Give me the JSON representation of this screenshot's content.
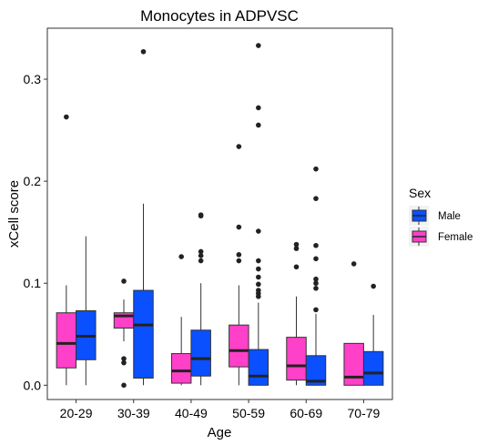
{
  "chart_data": {
    "type": "boxplot",
    "title": "Monocytes in ADPVSC",
    "xlabel": "Age",
    "ylabel": "xCell score",
    "ylim": [
      -0.014,
      0.35
    ],
    "yticks": [
      0.0,
      0.1,
      0.2,
      0.3
    ],
    "ytick_labels": [
      "0.0",
      "0.1",
      "0.2",
      "0.3"
    ],
    "categories": [
      "20-29",
      "30-39",
      "40-49",
      "50-59",
      "60-69",
      "70-79"
    ],
    "legend": {
      "title": "Sex",
      "placement": "right"
    },
    "series": [
      {
        "name": "Female",
        "color": "#FF40C8",
        "boxes": [
          {
            "min": 0.0,
            "q1": 0.017,
            "median": 0.041,
            "q3": 0.071,
            "max": 0.098,
            "outliers": [
              0.263
            ]
          },
          {
            "min": 0.043,
            "q1": 0.056,
            "median": 0.068,
            "q3": 0.071,
            "max": 0.084,
            "outliers": [
              0.102,
              0.026,
              0.022,
              0.0
            ]
          },
          {
            "min": 0.0,
            "q1": 0.002,
            "median": 0.014,
            "q3": 0.031,
            "max": 0.067,
            "outliers": [
              0.126
            ]
          },
          {
            "min": 0.0,
            "q1": 0.018,
            "median": 0.034,
            "q3": 0.059,
            "max": 0.098,
            "outliers": [
              0.234,
              0.155,
              0.128,
              0.122
            ]
          },
          {
            "min": 0.0,
            "q1": 0.005,
            "median": 0.019,
            "q3": 0.047,
            "max": 0.087,
            "outliers": [
              0.138,
              0.134,
              0.116
            ]
          },
          {
            "min": 0.0,
            "q1": 0.0,
            "median": 0.008,
            "q3": 0.041,
            "max": 0.041,
            "outliers": [
              0.119
            ]
          }
        ]
      },
      {
        "name": "Male",
        "color": "#0A50FF",
        "boxes": [
          {
            "min": 0.0,
            "q1": 0.025,
            "median": 0.048,
            "q3": 0.073,
            "max": 0.146,
            "outliers": []
          },
          {
            "min": 0.0,
            "q1": 0.007,
            "median": 0.059,
            "q3": 0.093,
            "max": 0.178,
            "outliers": [
              0.327
            ]
          },
          {
            "min": 0.0,
            "q1": 0.009,
            "median": 0.026,
            "q3": 0.054,
            "max": 0.1,
            "outliers": [
              0.167,
              0.166,
              0.131,
              0.127,
              0.122
            ]
          },
          {
            "min": 0.0,
            "q1": 0.0,
            "median": 0.009,
            "q3": 0.035,
            "max": 0.081,
            "outliers": [
              0.333,
              0.272,
              0.255,
              0.151,
              0.122,
              0.114,
              0.106,
              0.099,
              0.093,
              0.09,
              0.087
            ]
          },
          {
            "min": 0.0,
            "q1": 0.0,
            "median": 0.004,
            "q3": 0.029,
            "max": 0.07,
            "outliers": [
              0.212,
              0.183,
              0.137,
              0.124,
              0.104,
              0.1,
              0.095,
              0.074
            ]
          },
          {
            "min": 0.0,
            "q1": 0.0,
            "median": 0.012,
            "q3": 0.033,
            "max": 0.069,
            "outliers": [
              0.097
            ]
          }
        ]
      }
    ],
    "legend_order": [
      "Male",
      "Female"
    ],
    "grid": false
  }
}
